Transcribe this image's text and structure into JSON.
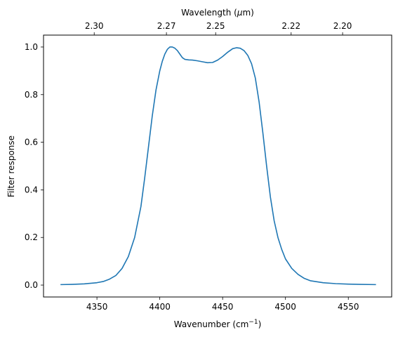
{
  "chart_data": {
    "type": "line",
    "xlabel": "Wavenumber (cm",
    "xlabel_sup": "−1",
    "xlabel_end": ")",
    "ylabel": "Filter response",
    "top_xlabel": "Wavelength (",
    "top_xlabel_mu": "μ",
    "top_xlabel_end": "m)",
    "xlim": [
      4307.5,
      4584.5
    ],
    "ylim": [
      -0.05,
      1.05
    ],
    "xticks": [
      4350,
      4400,
      4450,
      4500,
      4550
    ],
    "xtick_labels": [
      "4350",
      "4400",
      "4450",
      "4500",
      "4550"
    ],
    "yticks": [
      0.0,
      0.2,
      0.4,
      0.6,
      0.8,
      1.0
    ],
    "ytick_labels": [
      "0.0",
      "0.2",
      "0.4",
      "0.6",
      "0.8",
      "1.0"
    ],
    "top_xtick_labels": [
      "2.30",
      "2.27",
      "2.25",
      "2.22",
      "2.20"
    ],
    "grid": false,
    "line_color": "#1f77b4",
    "series": [
      {
        "x": [
          4321,
          4330,
          4340,
          4350,
          4355,
          4360,
          4365,
          4370,
          4375,
          4380,
          4385,
          4388,
          4391,
          4394,
          4397,
          4400,
          4402,
          4404,
          4406,
          4408,
          4410,
          4412,
          4414,
          4416,
          4418,
          4420,
          4423,
          4426,
          4430,
          4434,
          4438,
          4442,
          4446,
          4450,
          4454,
          4458,
          4461,
          4464,
          4467,
          4470,
          4473,
          4476,
          4479,
          4482,
          4485,
          4488,
          4491,
          4494,
          4497,
          4500,
          4505,
          4510,
          4515,
          4520,
          4530,
          4540,
          4550,
          4560,
          4572
        ],
        "y": [
          0.002,
          0.003,
          0.005,
          0.01,
          0.015,
          0.025,
          0.04,
          0.07,
          0.12,
          0.2,
          0.33,
          0.45,
          0.58,
          0.71,
          0.82,
          0.9,
          0.94,
          0.97,
          0.99,
          1.0,
          1.0,
          0.995,
          0.985,
          0.97,
          0.955,
          0.948,
          0.946,
          0.945,
          0.942,
          0.938,
          0.934,
          0.935,
          0.945,
          0.96,
          0.978,
          0.993,
          0.997,
          0.995,
          0.985,
          0.965,
          0.93,
          0.87,
          0.77,
          0.64,
          0.5,
          0.37,
          0.27,
          0.2,
          0.15,
          0.11,
          0.07,
          0.045,
          0.028,
          0.018,
          0.01,
          0.006,
          0.004,
          0.003,
          0.002
        ]
      }
    ]
  }
}
